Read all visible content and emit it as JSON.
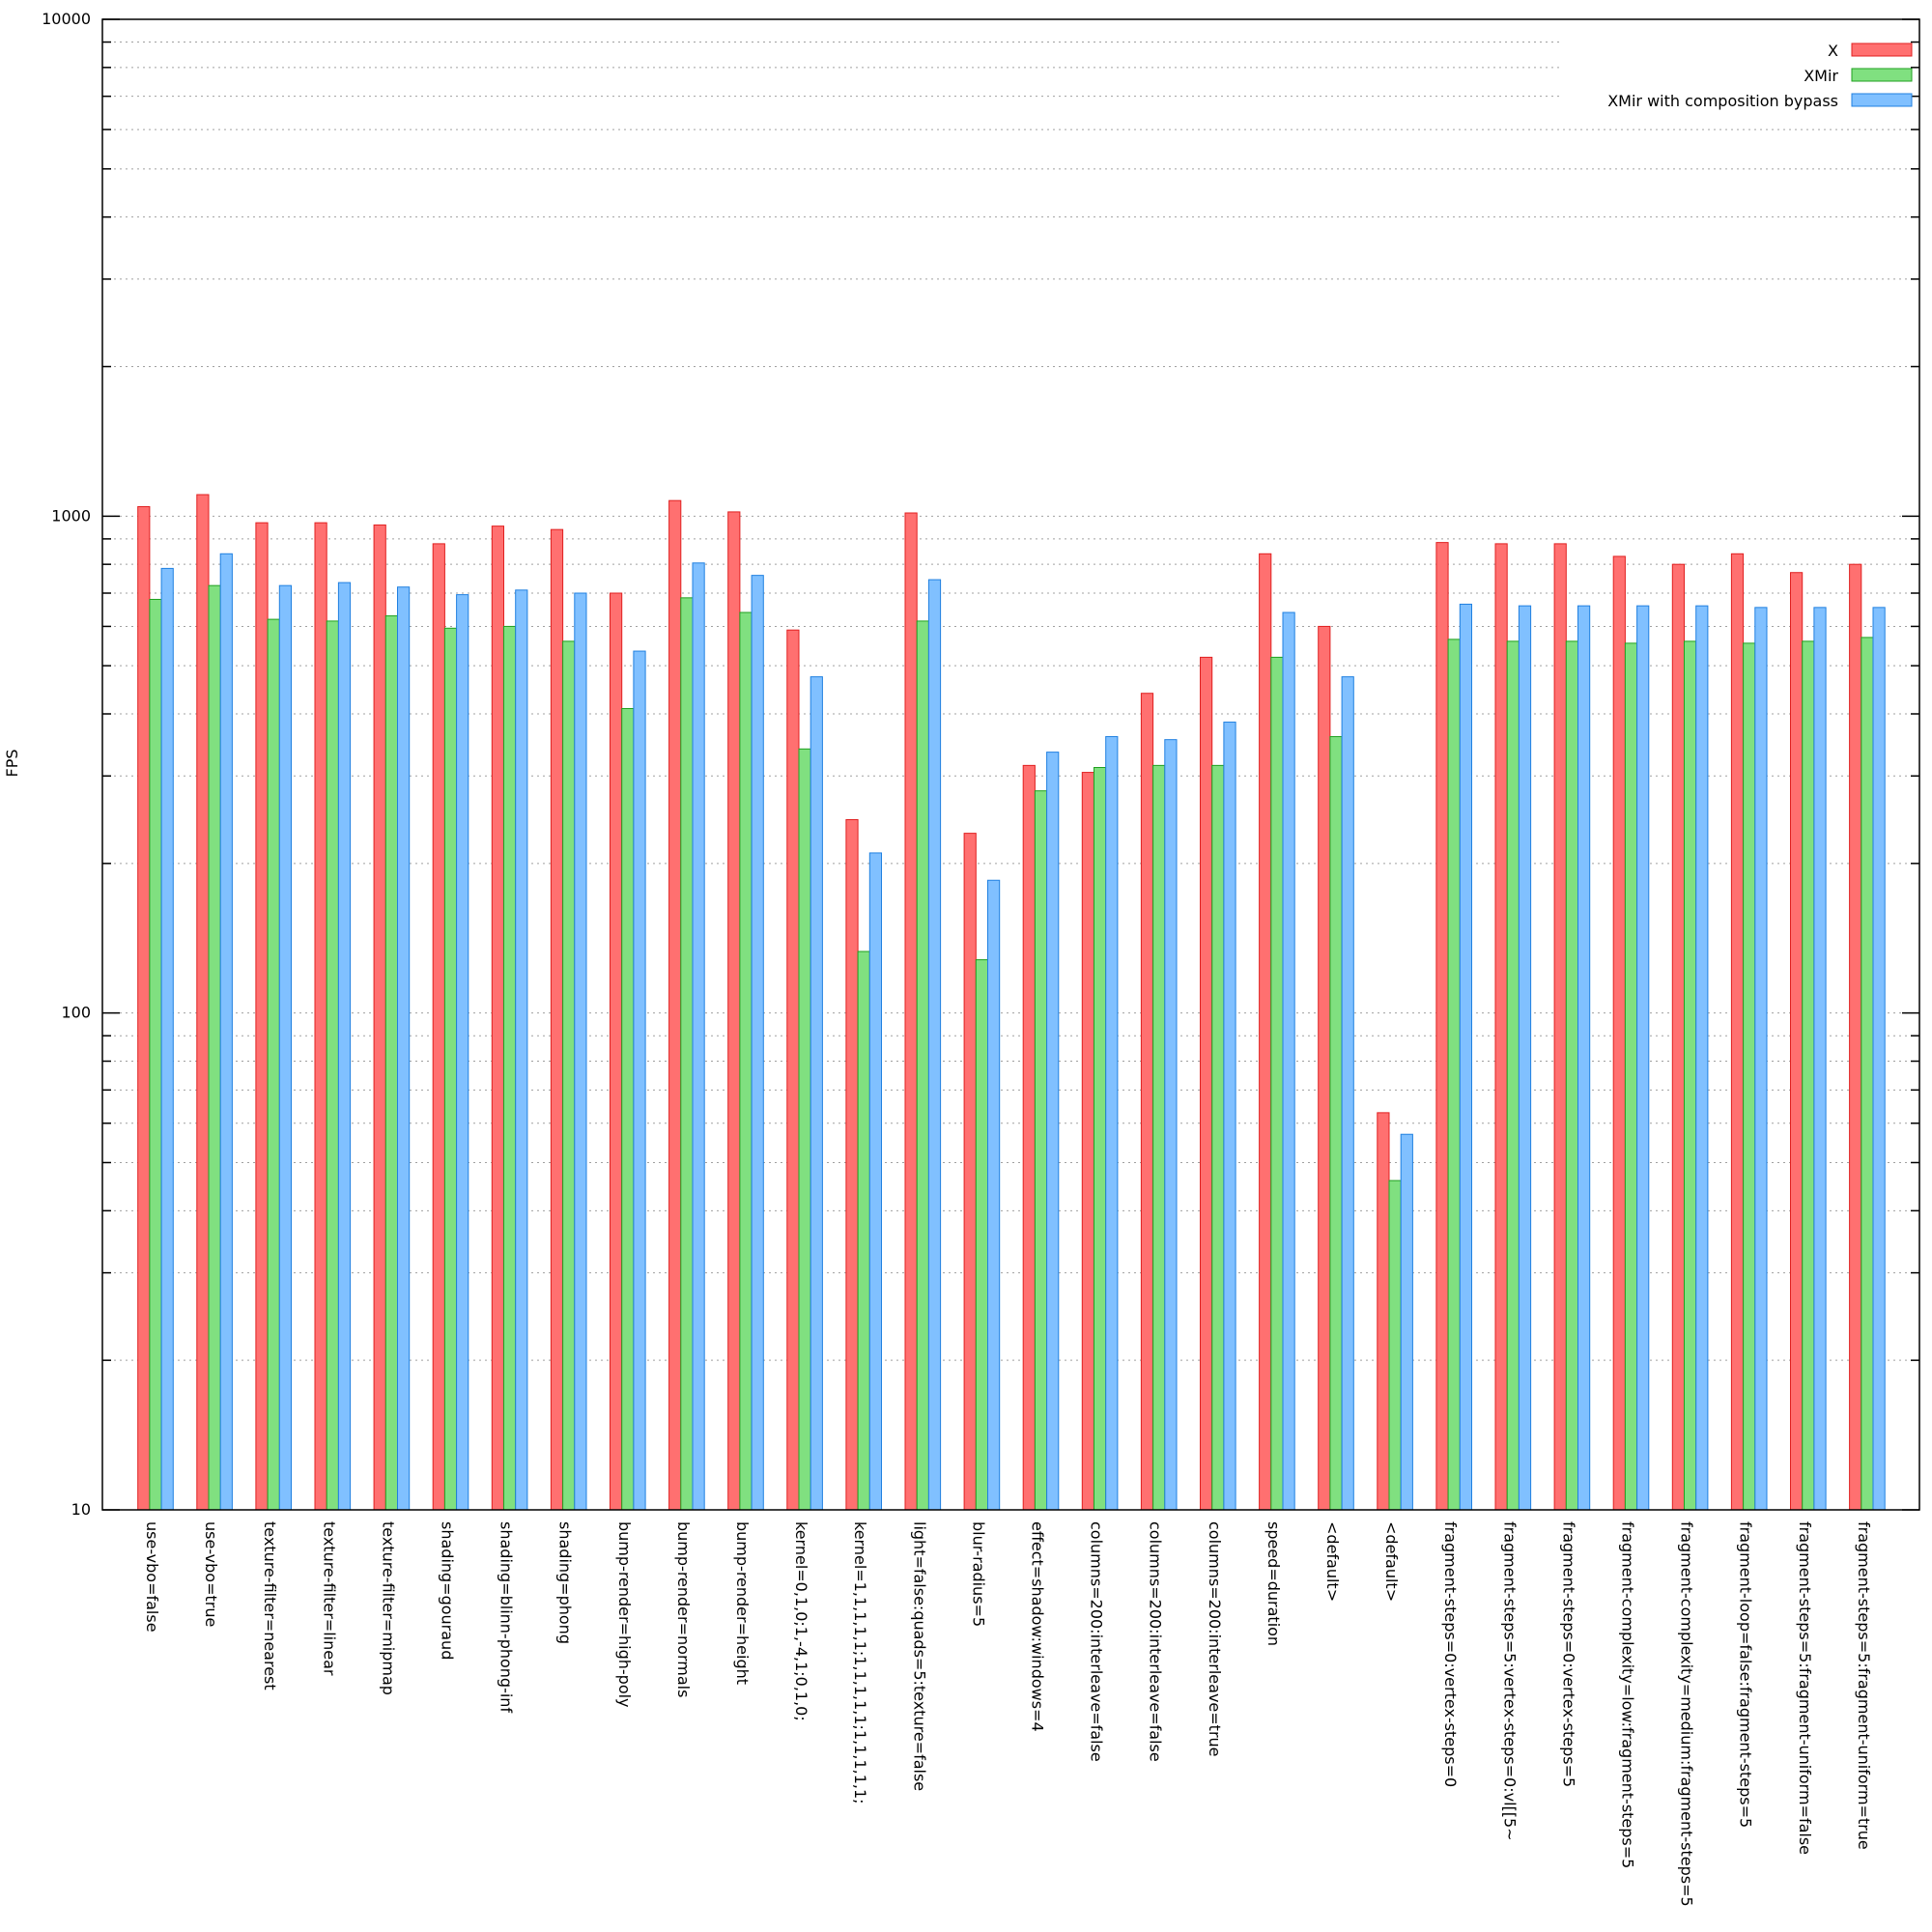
{
  "chart_data": {
    "type": "bar",
    "title": "",
    "xlabel": "",
    "ylabel": "FPS",
    "yscale": "log",
    "ylim": [
      10,
      10000
    ],
    "yticks": [
      {
        "value": 10,
        "label": "10"
      },
      {
        "value": 100,
        "label": "100"
      },
      {
        "value": 1000,
        "label": "1000"
      },
      {
        "value": 10000,
        "label": "10000"
      }
    ],
    "grid": true,
    "legend_position": "top-right",
    "categories": [
      "use-vbo=false",
      "use-vbo=true",
      "texture-filter=nearest",
      "texture-filter=linear",
      "texture-filter=mipmap",
      "shading=gouraud",
      "shading=blinn-phong-inf",
      "shading=phong",
      "bump-render=high-poly",
      "bump-render=normals",
      "bump-render=height",
      "kernel=0,1,0;1,-4,1;0,1,0;",
      "kernel=1,1,1,1,1;1,1,1,1,1;1,1,1,1,1;",
      "light=false:quads=5:texture=false",
      "blur-radius=5",
      "effect=shadow:windows=4",
      "columns=200:interleave=false",
      "columns=200:interleave=false",
      "columns=200:interleave=true",
      "speed=duration",
      "<default>",
      "<default>",
      "fragment-steps=0:vertex-steps=0",
      "fragment-steps=5:vertex-steps=0:vl[[5~",
      "fragment-steps=0:vertex-steps=5",
      "fragment-complexity=low:fragment-steps=5",
      "fragment-complexity=medium:fragment-steps=5",
      "fragment-loop=false:fragment-steps=5",
      "fragment-steps=5:fragment-uniform=false",
      "fragment-steps=5:fragment-uniform=true"
    ],
    "series": [
      {
        "name": "X",
        "color": "#ff7070",
        "border": "#e02020",
        "values": [
          1045,
          1105,
          970,
          970,
          960,
          880,
          955,
          940,
          700,
          1075,
          1020,
          590,
          245,
          1015,
          230,
          315,
          305,
          440,
          520,
          840,
          600,
          63,
          885,
          880,
          880,
          830,
          800,
          840,
          770,
          800
        ]
      },
      {
        "name": "XMir",
        "color": "#80e080",
        "border": "#20a020",
        "values": [
          680,
          725,
          620,
          615,
          630,
          595,
          600,
          560,
          410,
          685,
          640,
          340,
          133,
          615,
          128,
          280,
          312,
          315,
          315,
          520,
          360,
          46,
          565,
          560,
          560,
          555,
          560,
          555,
          560,
          570
        ]
      },
      {
        "name": "XMir with composition bypass",
        "color": "#80c0ff",
        "border": "#2080e0",
        "values": [
          785,
          840,
          725,
          735,
          720,
          695,
          710,
          700,
          535,
          805,
          760,
          475,
          210,
          745,
          185,
          335,
          360,
          355,
          385,
          640,
          475,
          57,
          665,
          660,
          660,
          660,
          660,
          655,
          655,
          655
        ]
      }
    ]
  }
}
